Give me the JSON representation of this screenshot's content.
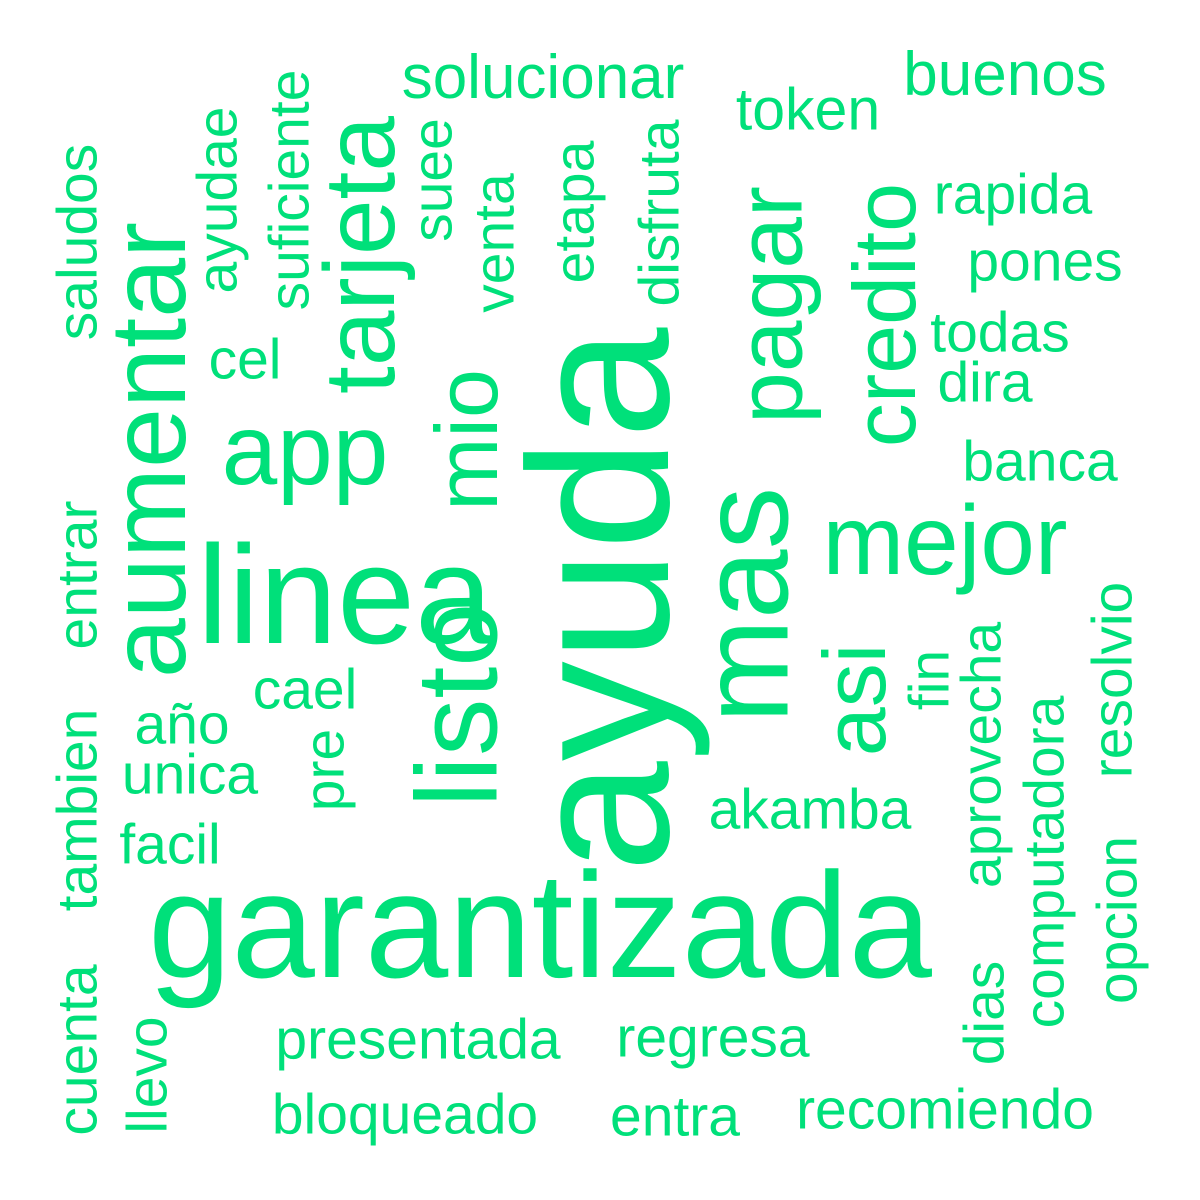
{
  "color": "#00e07a",
  "words": [
    {
      "text": "ayuda",
      "weight": 1.0
    },
    {
      "text": "garantizada",
      "weight": 0.92
    },
    {
      "text": "linea",
      "weight": 0.85
    },
    {
      "text": "mas",
      "weight": 0.78
    },
    {
      "text": "listo",
      "weight": 0.7
    },
    {
      "text": "aumentar",
      "weight": 0.68
    },
    {
      "text": "app",
      "weight": 0.62
    },
    {
      "text": "tarjeta",
      "weight": 0.62
    },
    {
      "text": "mejor",
      "weight": 0.6
    },
    {
      "text": "pagar",
      "weight": 0.58
    },
    {
      "text": "credito",
      "weight": 0.57
    },
    {
      "text": "mio",
      "weight": 0.55
    },
    {
      "text": "asi",
      "weight": 0.55
    },
    {
      "text": "solucionar",
      "weight": 0.35
    },
    {
      "text": "buenos",
      "weight": 0.35
    },
    {
      "text": "token",
      "weight": 0.34
    },
    {
      "text": "rapida",
      "weight": 0.33
    },
    {
      "text": "pones",
      "weight": 0.33
    },
    {
      "text": "todas",
      "weight": 0.33
    },
    {
      "text": "dira",
      "weight": 0.32
    },
    {
      "text": "banca",
      "weight": 0.33
    },
    {
      "text": "saludos",
      "weight": 0.32
    },
    {
      "text": "ayudae",
      "weight": 0.32
    },
    {
      "text": "suficiente",
      "weight": 0.32
    },
    {
      "text": "suee",
      "weight": 0.32
    },
    {
      "text": "venta",
      "weight": 0.32
    },
    {
      "text": "etapa",
      "weight": 0.32
    },
    {
      "text": "disfruta",
      "weight": 0.32
    },
    {
      "text": "cel",
      "weight": 0.32
    },
    {
      "text": "entrar",
      "weight": 0.32
    },
    {
      "text": "cael",
      "weight": 0.32
    },
    {
      "text": "año",
      "weight": 0.32
    },
    {
      "text": "unica",
      "weight": 0.32
    },
    {
      "text": "facil",
      "weight": 0.32
    },
    {
      "text": "pre",
      "weight": 0.32
    },
    {
      "text": "akamba",
      "weight": 0.32
    },
    {
      "text": "fin",
      "weight": 0.32
    },
    {
      "text": "aprovecha",
      "weight": 0.32
    },
    {
      "text": "resolvio",
      "weight": 0.32
    },
    {
      "text": "computadora",
      "weight": 0.32
    },
    {
      "text": "opcion",
      "weight": 0.32
    },
    {
      "text": "dias",
      "weight": 0.32
    },
    {
      "text": "tambien",
      "weight": 0.32
    },
    {
      "text": "cuenta",
      "weight": 0.32
    },
    {
      "text": "llevo",
      "weight": 0.32
    },
    {
      "text": "presentada",
      "weight": 0.32
    },
    {
      "text": "regresa",
      "weight": 0.32
    },
    {
      "text": "bloqueado",
      "weight": 0.32
    },
    {
      "text": "entra",
      "weight": 0.32
    },
    {
      "text": "recomiendo",
      "weight": 0.32
    }
  ]
}
